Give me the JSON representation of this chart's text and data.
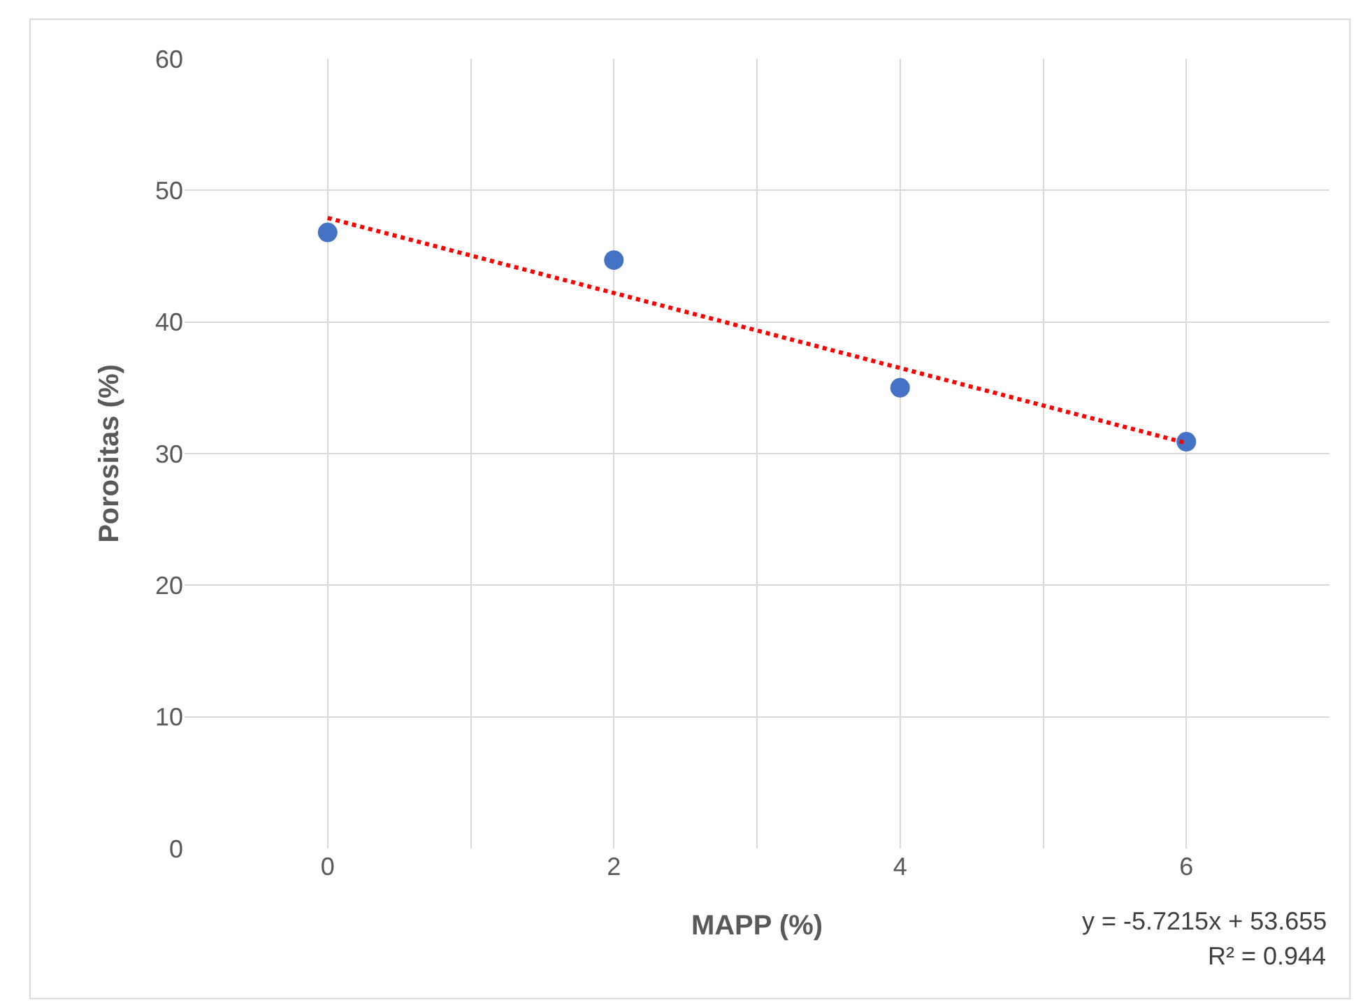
{
  "chart_data": {
    "type": "scatter",
    "xlabel": "MAPP (%)",
    "ylabel": "Porositas (%)",
    "x": [
      0,
      2,
      4,
      6
    ],
    "series": [
      {
        "color": "#4472c4",
        "marker": "circle",
        "values": [
          46.8,
          44.7,
          35.0,
          30.9
        ]
      },
      {
        "type": "line",
        "color": "#ff0000",
        "line_style": "dotted",
        "marker": "none",
        "x": [
          0,
          6
        ],
        "values": [
          47.9,
          30.8
        ]
      }
    ],
    "xlim": [
      -1,
      7
    ],
    "xticks": [
      0,
      {
        "value": 1,
        "label": null
      },
      2,
      {
        "value": 3,
        "label": null
      },
      4,
      {
        "value": 5,
        "label": null
      },
      6
    ],
    "ylim": [
      0,
      60
    ],
    "yticks": [
      0,
      10,
      20,
      30,
      40,
      50,
      60
    ],
    "grid": true,
    "legend": false,
    "annotations": [
      "y = -5.7215x + 53.655",
      "R² = 0.944"
    ]
  }
}
